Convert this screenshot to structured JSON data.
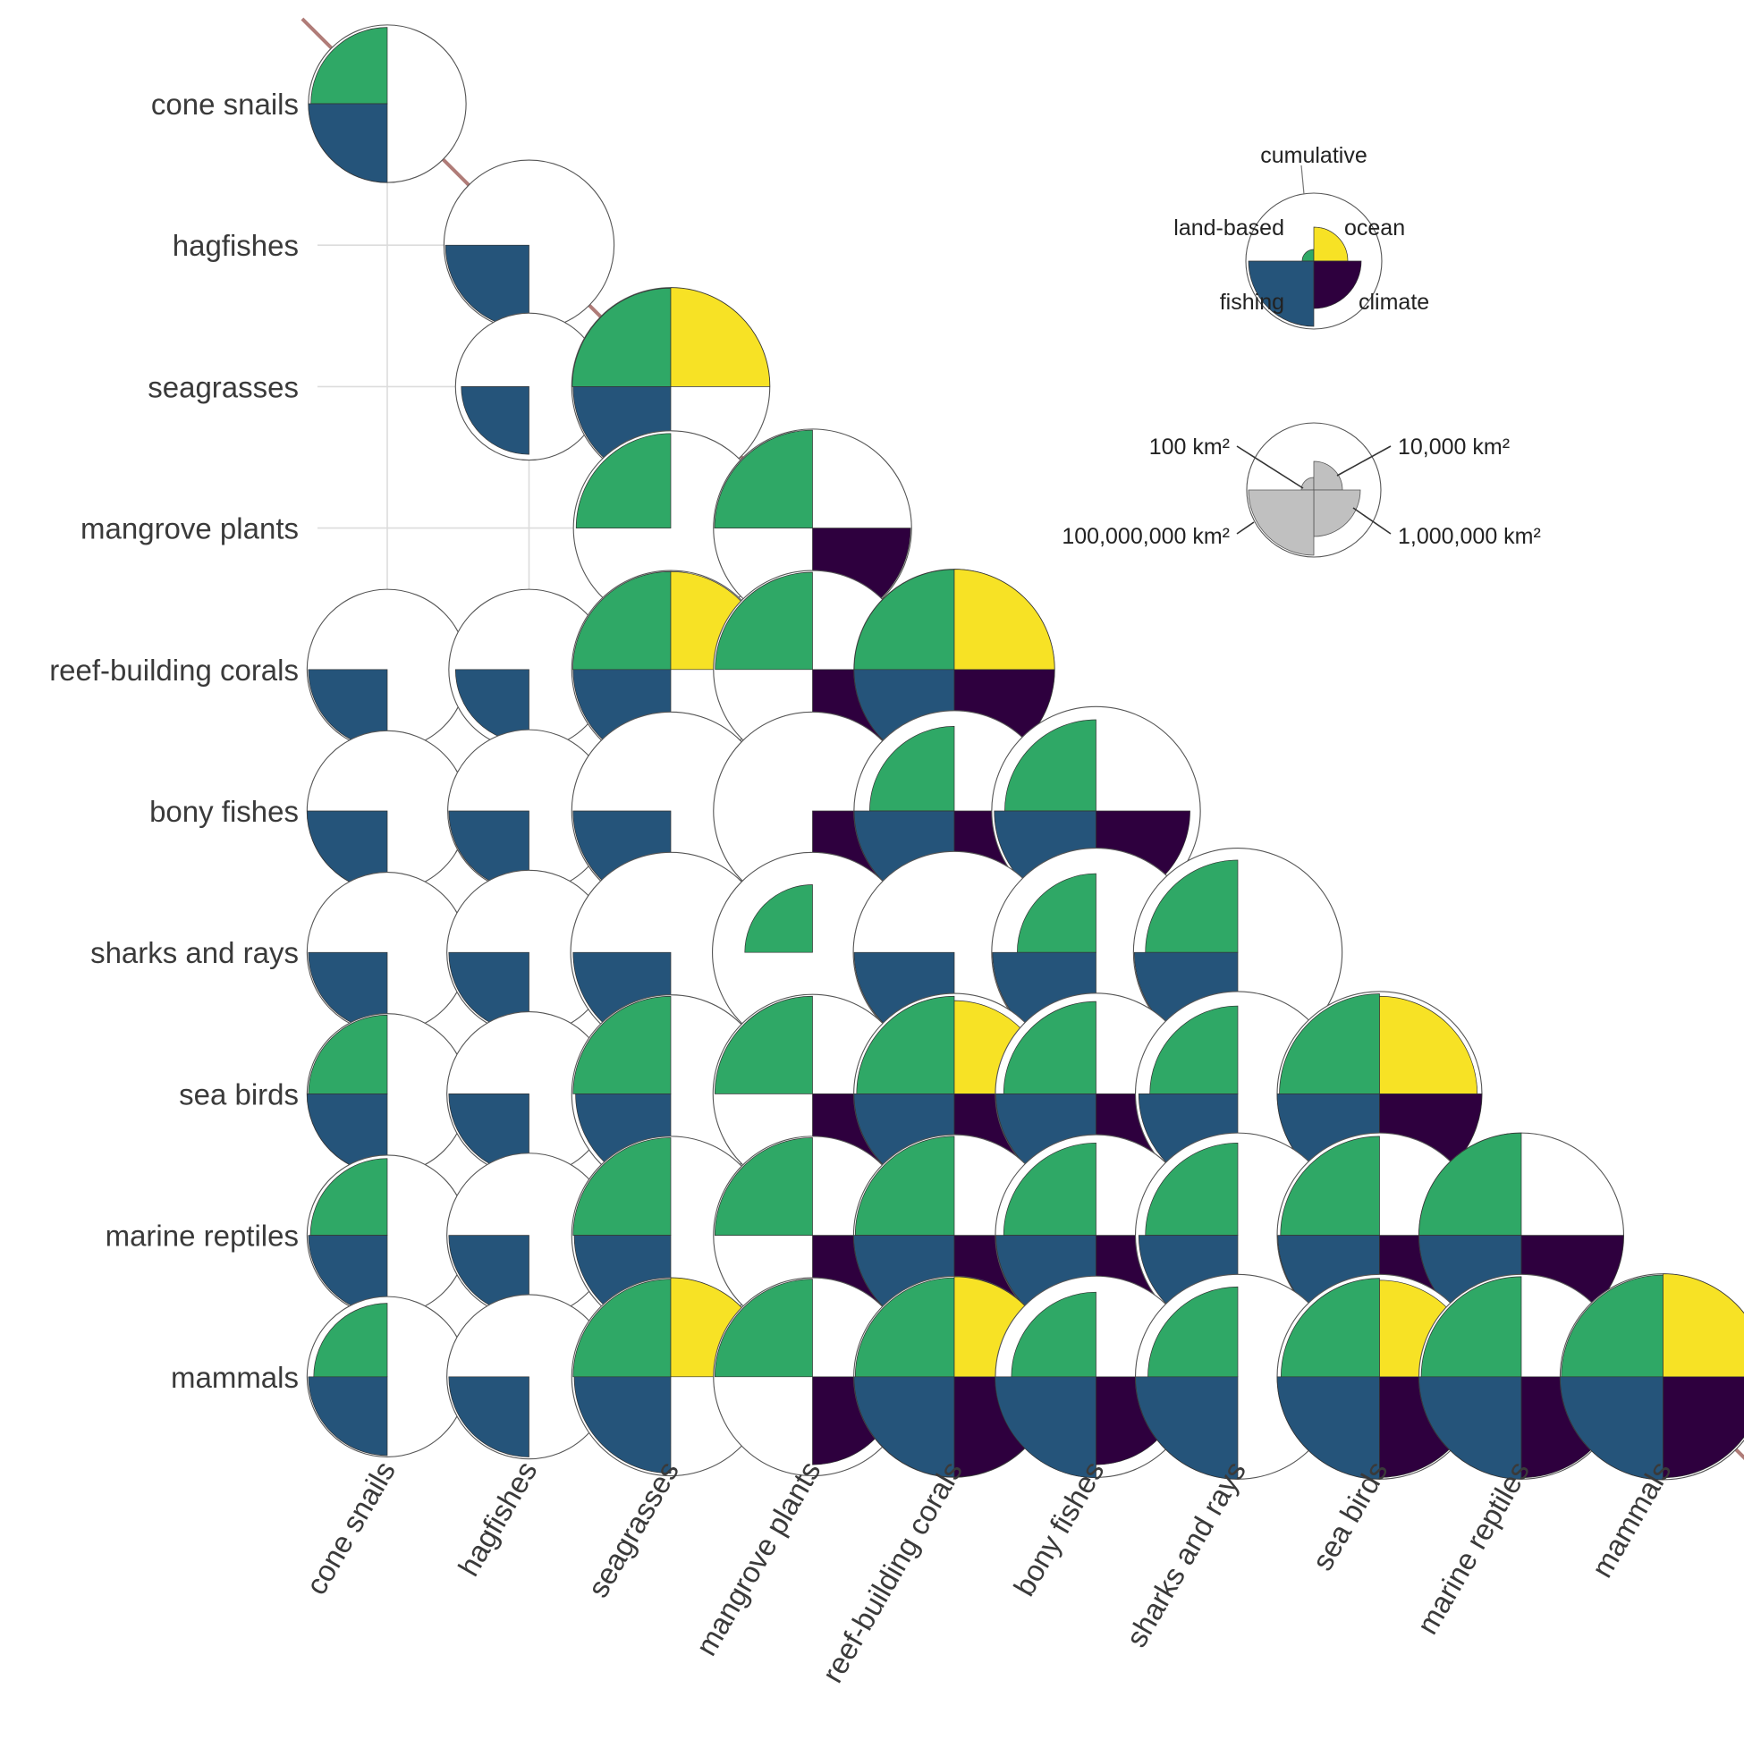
{
  "chart_data": {
    "type": "pairwise-quarter-circle-matrix",
    "title": "",
    "species": [
      "cone snails",
      "hagfishes",
      "seagrasses",
      "mangrove plants",
      "reef-building corals",
      "bony fishes",
      "sharks and rays",
      "sea birds",
      "marine reptiles",
      "mammals"
    ],
    "quadrant_layout": {
      "land-based": "top-left",
      "ocean": "top-right",
      "fishing": "bottom-left",
      "climate": "bottom-right"
    },
    "colors": {
      "land-based": "#2fa866",
      "ocean": "#f7e225",
      "fishing": "#25547a",
      "climate": "#2e003e",
      "cumulative_outline": "#555555",
      "scale": "#c0c0c0",
      "diagonal": "#b07c78",
      "grid": "#dcdcdc"
    },
    "units": "km²",
    "size_legend_km2": [
      100,
      10000,
      1000000,
      100000000
    ],
    "cells": [
      {
        "row": 0,
        "col": 0,
        "cumulative": 300000,
        "land-based": 180000,
        "ocean": 0,
        "fishing": 300000,
        "climate": 0
      },
      {
        "row": 1,
        "col": 1,
        "cumulative": 1100000,
        "land-based": 0,
        "ocean": 0,
        "fishing": 800000,
        "climate": 0
      },
      {
        "row": 2,
        "col": 1,
        "cumulative": 100000,
        "land-based": 0,
        "ocean": 0,
        "fishing": 30000,
        "climate": 0
      },
      {
        "row": 2,
        "col": 2,
        "cumulative": 20000000,
        "land-based": 18000000,
        "ocean": 20000000,
        "fishing": 15000000,
        "climate": 0
      },
      {
        "row": 3,
        "col": 2,
        "cumulative": 14000000,
        "land-based": 8000000,
        "ocean": 0,
        "fishing": 0,
        "climate": 0
      },
      {
        "row": 3,
        "col": 3,
        "cumulative": 20000000,
        "land-based": 16000000,
        "ocean": 0,
        "fishing": 0,
        "climate": 16000000
      },
      {
        "row": 4,
        "col": 0,
        "cumulative": 400000,
        "land-based": 0,
        "ocean": 0,
        "fishing": 300000,
        "climate": 0
      },
      {
        "row": 4,
        "col": 1,
        "cumulative": 400000,
        "land-based": 0,
        "ocean": 0,
        "fishing": 100000,
        "climate": 0
      },
      {
        "row": 4,
        "col": 2,
        "cumulative": 20000000,
        "land-based": 16000000,
        "ocean": 16000000,
        "fishing": 15000000,
        "climate": 0
      },
      {
        "row": 4,
        "col": 3,
        "cumulative": 20000000,
        "land-based": 14000000,
        "ocean": 0,
        "fishing": 0,
        "climate": 16000000
      },
      {
        "row": 4,
        "col": 4,
        "cumulative": 26000000,
        "land-based": 25000000,
        "ocean": 26000000,
        "fishing": 26000000,
        "climate": 26000000
      },
      {
        "row": 5,
        "col": 0,
        "cumulative": 400000,
        "land-based": 0,
        "ocean": 0,
        "fishing": 400000,
        "climate": 0
      },
      {
        "row": 5,
        "col": 1,
        "cumulative": 500000,
        "land-based": 0,
        "ocean": 0,
        "fishing": 400000,
        "climate": 0
      },
      {
        "row": 5,
        "col": 2,
        "cumulative": 20000000,
        "land-based": 0,
        "ocean": 0,
        "fishing": 15000000,
        "climate": 0
      },
      {
        "row": 5,
        "col": 3,
        "cumulative": 20000000,
        "land-based": 0,
        "ocean": 0,
        "fishing": 0,
        "climate": 5000000
      },
      {
        "row": 5,
        "col": 4,
        "cumulative": 26000000,
        "land-based": 1000000,
        "ocean": 0,
        "fishing": 25000000,
        "climate": 6000000
      },
      {
        "row": 5,
        "col": 5,
        "cumulative": 60000000,
        "land-based": 4000000,
        "ocean": 0,
        "fishing": 35000000,
        "climate": 7000000
      },
      {
        "row": 6,
        "col": 0,
        "cumulative": 400000,
        "land-based": 0,
        "ocean": 0,
        "fishing": 300000,
        "climate": 0
      },
      {
        "row": 6,
        "col": 1,
        "cumulative": 600000,
        "land-based": 0,
        "ocean": 0,
        "fishing": 400000,
        "climate": 0
      },
      {
        "row": 6,
        "col": 2,
        "cumulative": 25000000,
        "land-based": 0,
        "ocean": 0,
        "fishing": 15000000,
        "climate": 0
      },
      {
        "row": 6,
        "col": 3,
        "cumulative": 25000000,
        "land-based": 30000,
        "ocean": 0,
        "fishing": 0,
        "climate": 0
      },
      {
        "row": 6,
        "col": 4,
        "cumulative": 30000000,
        "land-based": 0,
        "ocean": 0,
        "fishing": 25000000,
        "climate": 0
      },
      {
        "row": 6,
        "col": 5,
        "cumulative": 60000000,
        "land-based": 300000,
        "ocean": 0,
        "fishing": 50000000,
        "climate": 0
      },
      {
        "row": 6,
        "col": 6,
        "cumulative": 60000000,
        "land-based": 5000000,
        "ocean": 0,
        "fishing": 50000000,
        "climate": 0
      },
      {
        "row": 7,
        "col": 0,
        "cumulative": 400000,
        "land-based": 300000,
        "ocean": 0,
        "fishing": 400000,
        "climate": 0
      },
      {
        "row": 7,
        "col": 1,
        "cumulative": 600000,
        "land-based": 0,
        "ocean": 0,
        "fishing": 400000,
        "climate": 0
      },
      {
        "row": 7,
        "col": 2,
        "cumulative": 20000000,
        "land-based": 15000000,
        "ocean": 0,
        "fishing": 9000000,
        "climate": 0
      },
      {
        "row": 7,
        "col": 3,
        "cumulative": 22000000,
        "land-based": 15000000,
        "ocean": 0,
        "fishing": 0,
        "climate": 15000000
      },
      {
        "row": 7,
        "col": 4,
        "cumulative": 27000000,
        "land-based": 15000000,
        "ocean": 6000000,
        "fishing": 26000000,
        "climate": 26000000
      },
      {
        "row": 7,
        "col": 5,
        "cumulative": 28000000,
        "land-based": 5000000,
        "ocean": 0,
        "fishing": 25000000,
        "climate": 7000000
      },
      {
        "row": 7,
        "col": 6,
        "cumulative": 40000000,
        "land-based": 2000000,
        "ocean": 0,
        "fishing": 20000000,
        "climate": 0
      },
      {
        "row": 7,
        "col": 7,
        "cumulative": 40000000,
        "land-based": 25000000,
        "ocean": 15000000,
        "fishing": 40000000,
        "climate": 40000000
      },
      {
        "row": 8,
        "col": 0,
        "cumulative": 400000,
        "land-based": 200000,
        "ocean": 0,
        "fishing": 300000,
        "climate": 0
      },
      {
        "row": 8,
        "col": 1,
        "cumulative": 600000,
        "land-based": 0,
        "ocean": 0,
        "fishing": 400000,
        "climate": 0
      },
      {
        "row": 8,
        "col": 2,
        "cumulative": 20000000,
        "land-based": 15000000,
        "ocean": 0,
        "fishing": 12000000,
        "climate": 0
      },
      {
        "row": 8,
        "col": 3,
        "cumulative": 20000000,
        "land-based": 15000000,
        "ocean": 0,
        "fishing": 0,
        "climate": 15000000
      },
      {
        "row": 8,
        "col": 4,
        "cumulative": 28000000,
        "land-based": 20000000,
        "ocean": 0,
        "fishing": 28000000,
        "climate": 28000000
      },
      {
        "row": 8,
        "col": 5,
        "cumulative": 28000000,
        "land-based": 5000000,
        "ocean": 0,
        "fishing": 25000000,
        "climate": 8000000
      },
      {
        "row": 8,
        "col": 6,
        "cumulative": 40000000,
        "land-based": 5000000,
        "ocean": 0,
        "fishing": 20000000,
        "climate": 0
      },
      {
        "row": 8,
        "col": 7,
        "cumulative": 40000000,
        "land-based": 20000000,
        "ocean": 0,
        "fishing": 35000000,
        "climate": 35000000
      },
      {
        "row": 8,
        "col": 8,
        "cumulative": 40000000,
        "land-based": 40000000,
        "ocean": 0,
        "fishing": 40000000,
        "climate": 40000000
      },
      {
        "row": 9,
        "col": 0,
        "cumulative": 400000,
        "land-based": 100000,
        "ocean": 0,
        "fishing": 300000,
        "climate": 0
      },
      {
        "row": 9,
        "col": 1,
        "cumulative": 600000,
        "land-based": 0,
        "ocean": 0,
        "fishing": 400000,
        "climate": 0
      },
      {
        "row": 9,
        "col": 2,
        "cumulative": 20000000,
        "land-based": 15000000,
        "ocean": 20000000,
        "fishing": 12000000,
        "climate": 0
      },
      {
        "row": 9,
        "col": 3,
        "cumulative": 20000000,
        "land-based": 15000000,
        "ocean": 0,
        "fishing": 0,
        "climate": 2000000
      },
      {
        "row": 9,
        "col": 4,
        "cumulative": 27000000,
        "land-based": 20000000,
        "ocean": 25000000,
        "fishing": 26000000,
        "climate": 26000000
      },
      {
        "row": 9,
        "col": 5,
        "cumulative": 28000000,
        "land-based": 1000000,
        "ocean": 0,
        "fishing": 30000000,
        "climate": 2000000
      },
      {
        "row": 9,
        "col": 6,
        "cumulative": 40000000,
        "land-based": 3000000,
        "ocean": 0,
        "fishing": 40000000,
        "climate": 0
      },
      {
        "row": 9,
        "col": 7,
        "cumulative": 40000000,
        "land-based": 18000000,
        "ocean": 12000000,
        "fishing": 40000000,
        "climate": 28000000
      },
      {
        "row": 9,
        "col": 8,
        "cumulative": 40000000,
        "land-based": 25000000,
        "ocean": 0,
        "fishing": 40000000,
        "climate": 30000000
      },
      {
        "row": 9,
        "col": 9,
        "cumulative": 45000000,
        "land-based": 35000000,
        "ocean": 45000000,
        "fishing": 45000000,
        "climate": 30000000
      }
    ]
  },
  "legend": {
    "labels": {
      "cumulative": "cumulative",
      "land-based": "land-based",
      "ocean": "ocean",
      "fishing": "fishing",
      "climate": "climate"
    },
    "example": {
      "cumulative": 1000000,
      "land-based": 10000,
      "ocean": 300000,
      "fishing": 1000000,
      "climate": 500000
    },
    "size_labels": [
      "100 km²",
      "10,000 km²",
      "1,000,000 km²",
      "100,000,000 km²"
    ]
  }
}
